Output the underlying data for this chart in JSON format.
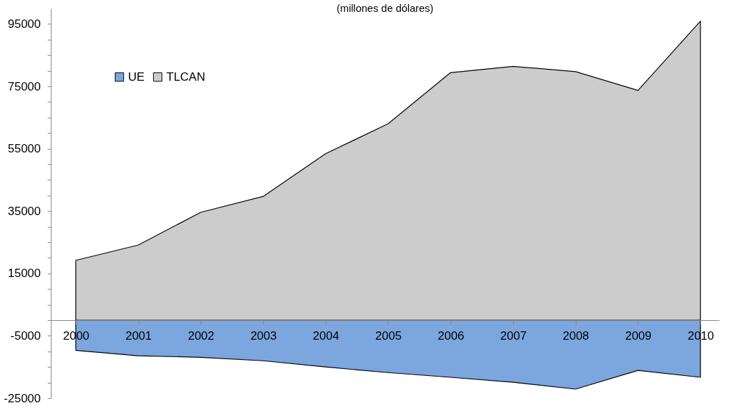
{
  "chart_data": {
    "type": "area",
    "title": "(millones de dólares)",
    "categories": [
      "2000",
      "2001",
      "2002",
      "2003",
      "2004",
      "2005",
      "2006",
      "2007",
      "2008",
      "2009",
      "2010"
    ],
    "series": [
      {
        "name": "UE",
        "color": "#7ba6de",
        "values": [
          -9700,
          -11400,
          -11900,
          -13000,
          -15000,
          -16800,
          -18300,
          -19900,
          -22100,
          -16100,
          -18300
        ]
      },
      {
        "name": "TLCAN",
        "color": "#cccccc",
        "values": [
          19200,
          24100,
          34600,
          39700,
          53400,
          63000,
          79400,
          81400,
          79700,
          73700,
          95900
        ]
      }
    ],
    "ylim": [
      -25000,
      100000
    ],
    "yticks": [
      -25000,
      {
        "value": -20000,
        "label": null
      },
      {
        "value": -15000,
        "label": null
      },
      {
        "value": -10000,
        "label": null
      },
      -5000,
      {
        "value": 0,
        "label": null
      },
      {
        "value": 5000,
        "label": null
      },
      {
        "value": 10000,
        "label": null
      },
      15000,
      {
        "value": 20000,
        "label": null
      },
      {
        "value": 25000,
        "label": null
      },
      {
        "value": 30000,
        "label": null
      },
      35000,
      {
        "value": 40000,
        "label": null
      },
      {
        "value": 45000,
        "label": null
      },
      {
        "value": 50000,
        "label": null
      },
      55000,
      {
        "value": 60000,
        "label": null
      },
      {
        "value": 65000,
        "label": null
      },
      {
        "value": 70000,
        "label": null
      },
      75000,
      {
        "value": 80000,
        "label": null
      },
      {
        "value": 85000,
        "label": null
      },
      {
        "value": 90000,
        "label": null
      },
      95000
    ],
    "legend": "top left",
    "grid": false
  }
}
